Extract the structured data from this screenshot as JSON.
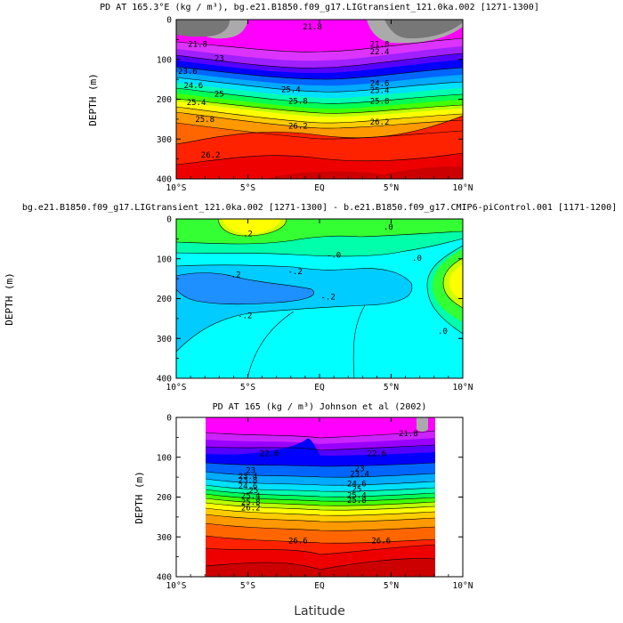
{
  "chart_data": [
    {
      "type": "contour",
      "title": "PD AT 165.3°E (kg / m³), bg.e21.B1850.f09_g17.LIGtransient_121.0ka.002 [1271-1300]",
      "ylabel": "DEPTH (m)",
      "xlabel": "",
      "x_ticks": [
        "10°S",
        "5°S",
        "EQ",
        "5°N",
        "10°N"
      ],
      "y_ticks": [
        "0",
        "100",
        "200",
        "300",
        "400"
      ],
      "xlim": [
        -10,
        10
      ],
      "ylim": [
        400,
        0
      ],
      "colorscale": [
        "#777777",
        "#aaaaaa",
        "#ff00ff",
        "#dd33ff",
        "#a020ff",
        "#5500ff",
        "#0000ff",
        "#0066ff",
        "#00aaff",
        "#00e0ff",
        "#00ffb0",
        "#00ff55",
        "#44ff00",
        "#bbff00",
        "#ffff00",
        "#ffcc00",
        "#ff9900",
        "#ff6600",
        "#ff2200",
        "#ee0000",
        "#cc0000"
      ],
      "contour_labels": [
        {
          "text": "21.8",
          "x": -0.5,
          "y": 18
        },
        {
          "text": "21.8",
          "x": -8.5,
          "y": 62
        },
        {
          "text": "21.8",
          "x": 4.2,
          "y": 62
        },
        {
          "text": "22.4",
          "x": 4.2,
          "y": 80
        },
        {
          "text": "23",
          "x": -7.0,
          "y": 97
        },
        {
          "text": "23.6",
          "x": -9.2,
          "y": 130
        },
        {
          "text": "24.6",
          "x": -8.8,
          "y": 165
        },
        {
          "text": "25",
          "x": -7.0,
          "y": 187
        },
        {
          "text": "25.4",
          "x": -8.6,
          "y": 208
        },
        {
          "text": "25.8",
          "x": -8.0,
          "y": 250
        },
        {
          "text": "26.2",
          "x": -7.6,
          "y": 340
        },
        {
          "text": "25.4",
          "x": -2.0,
          "y": 175
        },
        {
          "text": "25.8",
          "x": -1.5,
          "y": 205
        },
        {
          "text": "26.2",
          "x": -1.5,
          "y": 267
        },
        {
          "text": "24.6",
          "x": 4.2,
          "y": 160
        },
        {
          "text": "25.4",
          "x": 4.2,
          "y": 178
        },
        {
          "text": "25.8",
          "x": 4.2,
          "y": 205
        },
        {
          "text": "26.2",
          "x": 4.2,
          "y": 257
        }
      ]
    },
    {
      "type": "contour",
      "title": "bg.e21.B1850.f09_g17.LIGtransient_121.0ka.002 [1271-1300] - b.e21.B1850.f09_g17.CMIP6-piControl.001 [1171-1200]",
      "ylabel": "DEPTH (m)",
      "xlabel": "",
      "x_ticks": [
        "10°S",
        "5°S",
        "EQ",
        "5°N",
        "10°N"
      ],
      "y_ticks": [
        "0",
        "100",
        "200",
        "300",
        "400"
      ],
      "xlim": [
        -10,
        10
      ],
      "ylim": [
        400,
        0
      ],
      "colorscale": [
        "#1e90ff",
        "#00ccff",
        "#00ffff",
        "#00ffaa",
        "#33ff33",
        "#ccff00",
        "#ffff00"
      ],
      "contour_labels": [
        {
          "text": ".2",
          "x": -5.0,
          "y": 37
        },
        {
          "text": ".0",
          "x": 4.8,
          "y": 20
        },
        {
          "text": "-.0",
          "x": 1.0,
          "y": 90
        },
        {
          "text": "-.2",
          "x": -6.0,
          "y": 140
        },
        {
          "text": "-.2",
          "x": -1.7,
          "y": 132
        },
        {
          "text": "-.2",
          "x": 0.6,
          "y": 195
        },
        {
          "text": "-.2",
          "x": -5.2,
          "y": 242
        },
        {
          "text": ".0",
          "x": 6.8,
          "y": 98
        },
        {
          "text": ".0",
          "x": 8.6,
          "y": 282
        }
      ]
    },
    {
      "type": "contour",
      "title": "PD AT 165 (kg / m³) Johnson et al (2002)",
      "ylabel": "DEPTH (m)",
      "xlabel": "Latitude",
      "x_ticks": [
        "10°S",
        "5°S",
        "EQ",
        "5°N",
        "10°N"
      ],
      "y_ticks": [
        "0",
        "100",
        "200",
        "300",
        "400"
      ],
      "xlim": [
        -10,
        10
      ],
      "ylim": [
        400,
        0
      ],
      "data_xlim": [
        -8,
        8
      ],
      "colorscale": [
        "#aaaaaa",
        "#ff00ff",
        "#cc22ff",
        "#9900ff",
        "#5500ff",
        "#0000ff",
        "#0066ff",
        "#00aaff",
        "#00e0ff",
        "#00ffb0",
        "#00ff55",
        "#44ff00",
        "#bbff00",
        "#ffff00",
        "#ffcc00",
        "#ff9900",
        "#ff6600",
        "#ff2200",
        "#ee0000",
        "#cc0000"
      ],
      "contour_labels": [
        {
          "text": "21.8",
          "x": 6.2,
          "y": 40
        },
        {
          "text": "22.6",
          "x": -3.5,
          "y": 90
        },
        {
          "text": "22.6",
          "x": 4.0,
          "y": 90
        },
        {
          "text": "23",
          "x": -4.8,
          "y": 133
        },
        {
          "text": "23",
          "x": 2.8,
          "y": 128
        },
        {
          "text": "23.4",
          "x": -5.0,
          "y": 147
        },
        {
          "text": "23.8",
          "x": -5.0,
          "y": 157
        },
        {
          "text": "24.6",
          "x": -5.0,
          "y": 172
        },
        {
          "text": "25",
          "x": -4.6,
          "y": 183
        },
        {
          "text": "25.4",
          "x": -4.8,
          "y": 197
        },
        {
          "text": "25.8",
          "x": -4.8,
          "y": 212
        },
        {
          "text": "26.2",
          "x": -4.8,
          "y": 227
        },
        {
          "text": "23.4",
          "x": 2.8,
          "y": 142
        },
        {
          "text": "24.6",
          "x": 2.6,
          "y": 166
        },
        {
          "text": "25",
          "x": 2.6,
          "y": 180
        },
        {
          "text": "25.4",
          "x": 2.6,
          "y": 195
        },
        {
          "text": "25.8",
          "x": 2.6,
          "y": 208
        },
        {
          "text": "26.6",
          "x": -1.5,
          "y": 310
        },
        {
          "text": "26.6",
          "x": 4.3,
          "y": 310
        }
      ]
    }
  ]
}
